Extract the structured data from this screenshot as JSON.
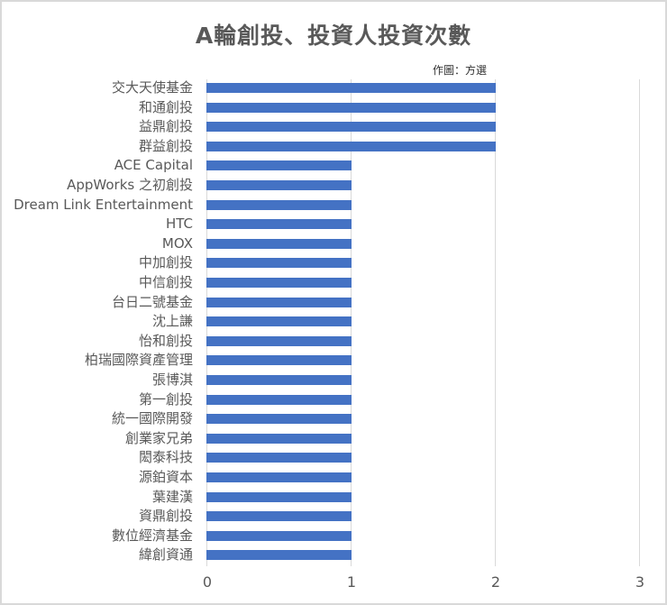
{
  "chart_data": {
    "type": "bar",
    "orientation": "horizontal",
    "title": "A輪創投、投資人投資次數",
    "annotation": "作圖：方選",
    "xlabel": "",
    "ylabel": "",
    "xlim": [
      0,
      3
    ],
    "xticks": [
      "0",
      "1",
      "2",
      "3"
    ],
    "grid": true,
    "legend": null,
    "bar_color": "#4472c4",
    "categories": [
      "交大天使基金",
      "和通創投",
      "益鼎創投",
      "群益創投",
      "ACE Capital",
      "AppWorks 之初創投",
      "Dream Link Entertainment",
      "HTC",
      "MOX",
      "中加創投",
      "中信創投",
      "台日二號基金",
      "沈上謙",
      "怡和創投",
      "柏瑞國際資產管理",
      "張博淇",
      "第一創投",
      "統一國際開發",
      "創業家兄弟",
      "閎泰科技",
      "源鉑資本",
      "葉建漢",
      "資鼎創投",
      "數位經濟基金",
      "緯創資通"
    ],
    "values": [
      2,
      2,
      2,
      2,
      1,
      1,
      1,
      1,
      1,
      1,
      1,
      1,
      1,
      1,
      1,
      1,
      1,
      1,
      1,
      1,
      1,
      1,
      1,
      1,
      1
    ]
  }
}
